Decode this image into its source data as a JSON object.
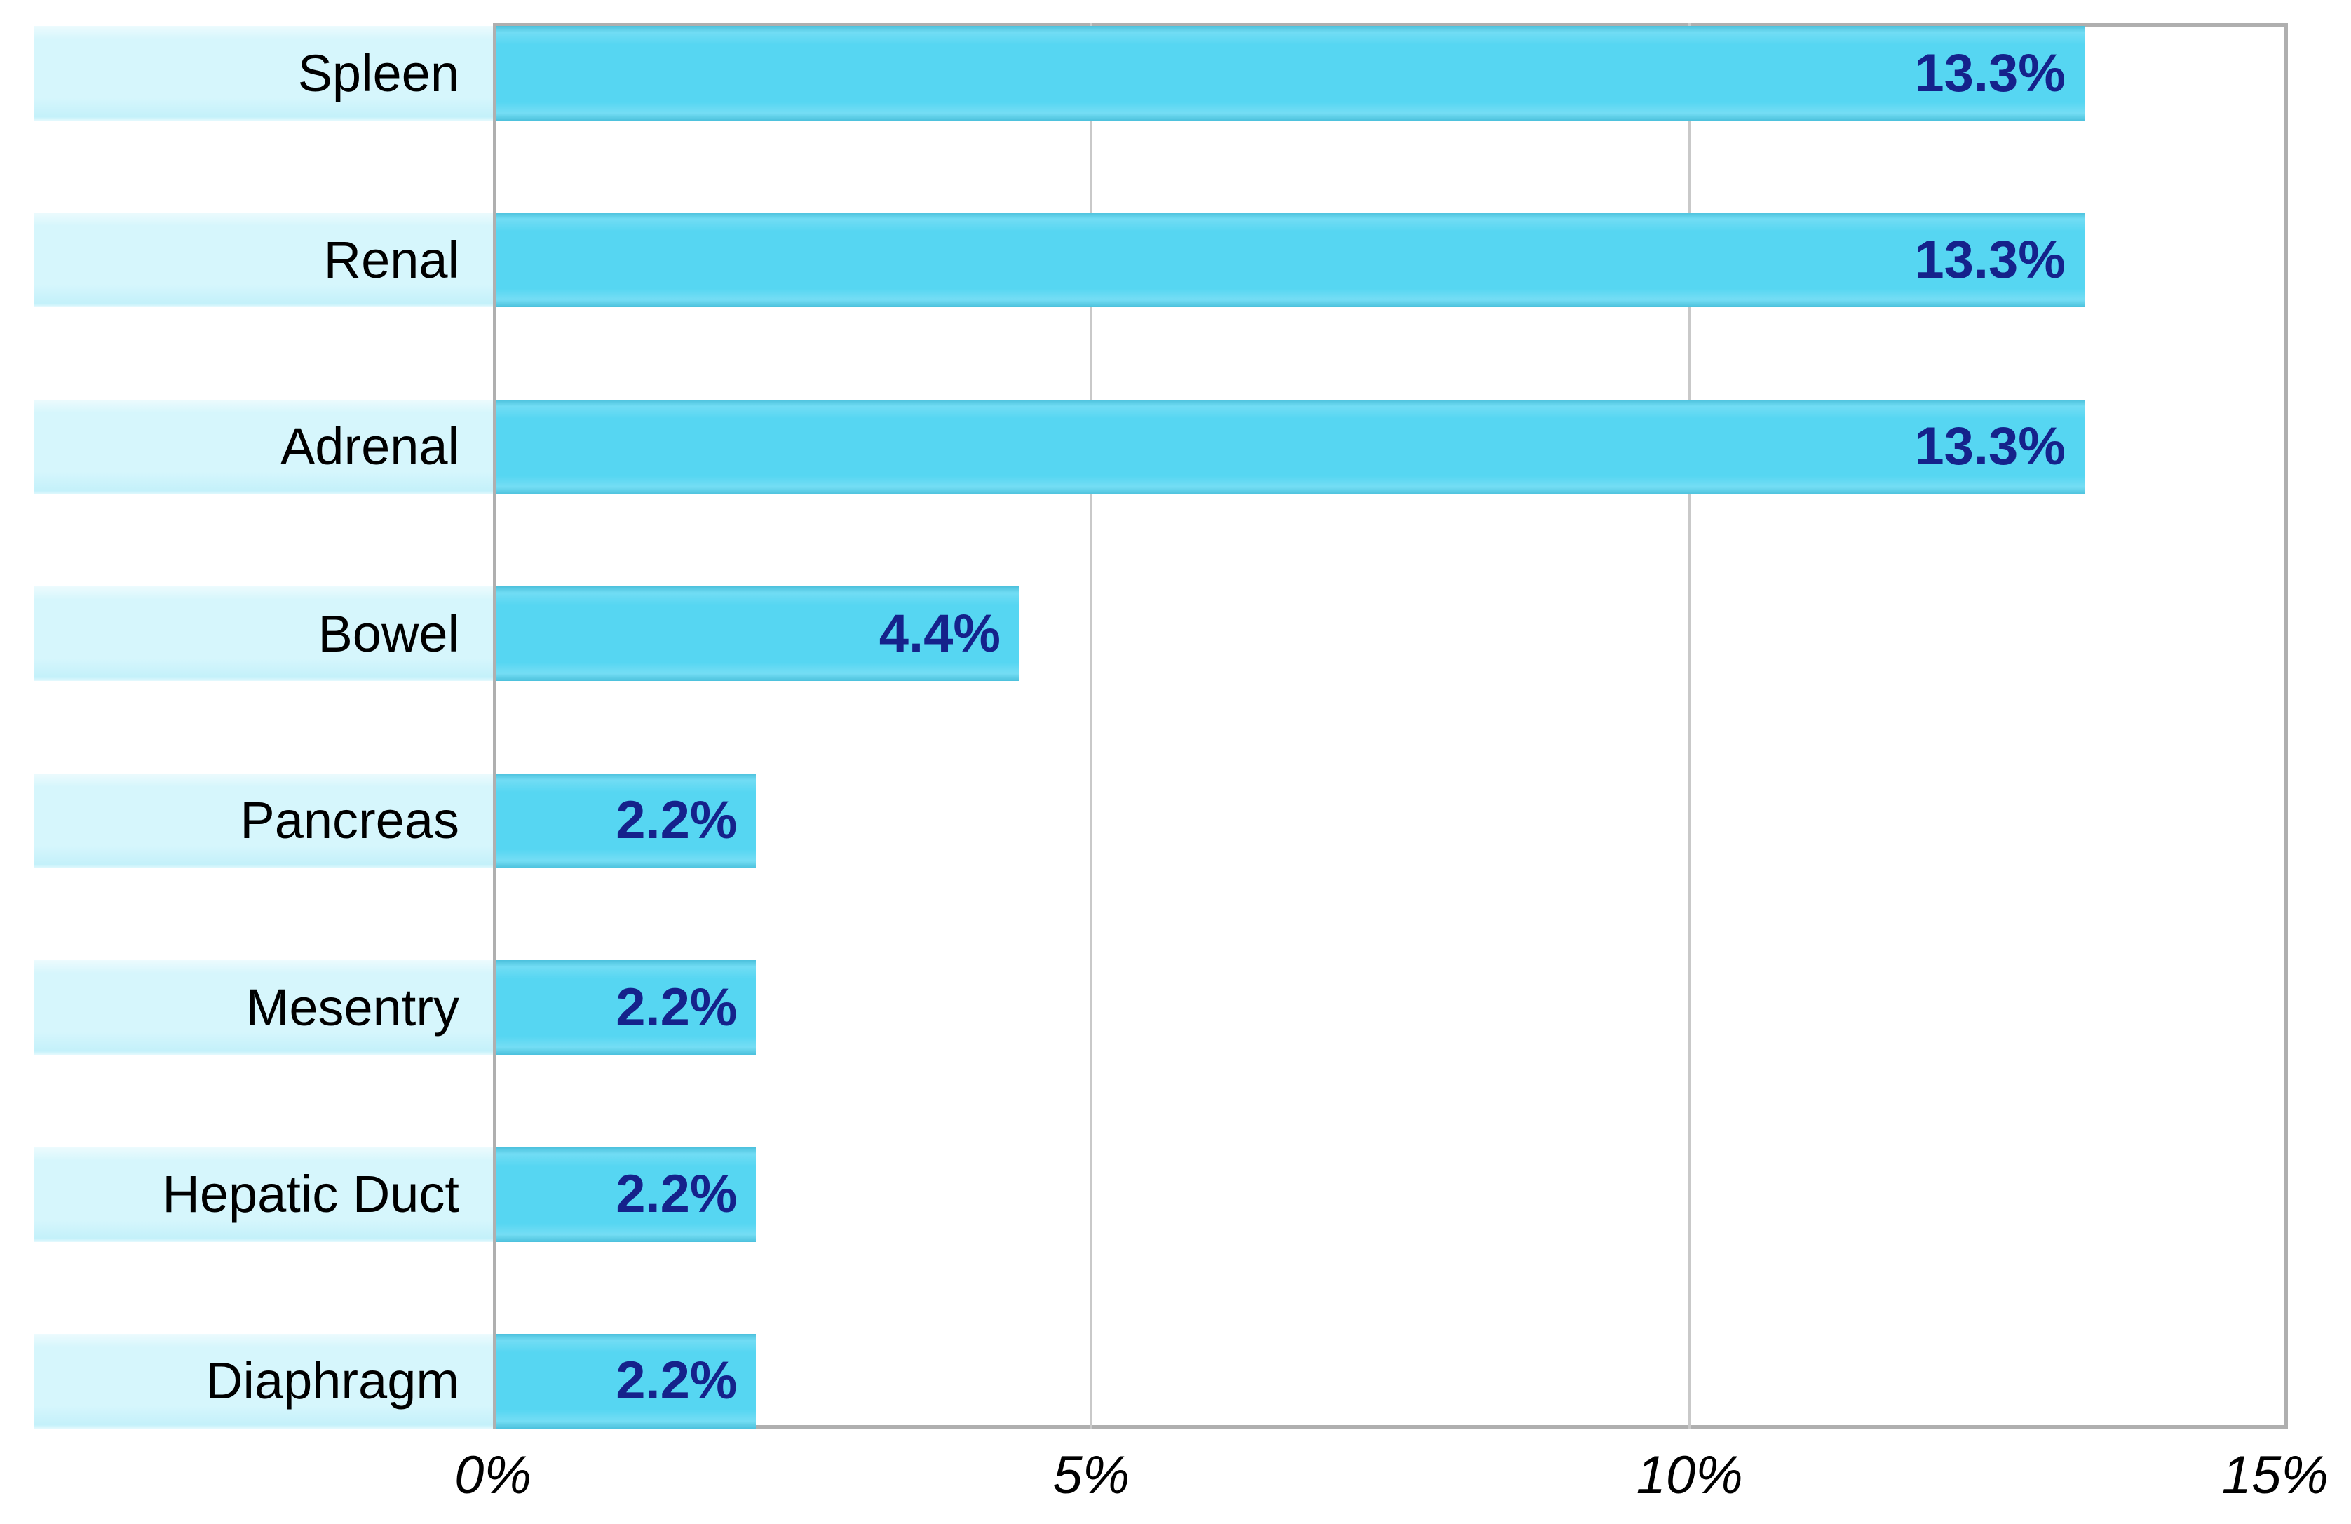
{
  "chart_data": {
    "type": "bar",
    "orientation": "horizontal",
    "title": "",
    "xlabel": "",
    "ylabel": "",
    "categories": [
      "Spleen",
      "Renal",
      "Adrenal",
      "Bowel",
      "Pancreas",
      "Mesentry",
      "Hepatic Duct",
      "Diaphragm"
    ],
    "values": [
      13.3,
      13.3,
      13.3,
      4.4,
      2.2,
      2.2,
      2.2,
      2.2
    ],
    "value_labels": [
      "13.3%",
      "13.3%",
      "13.3%",
      "4.4%",
      "2.2%",
      "2.2%",
      "2.2%",
      "2.2%"
    ],
    "x_axis": {
      "min": 0,
      "max": 15,
      "tick_values": [
        0,
        5,
        10,
        15
      ],
      "tick_labels": [
        "0%",
        "5%",
        "10%",
        "15%"
      ],
      "gridline_values": [
        5,
        10
      ]
    },
    "legend": "none",
    "grid": "vertical-gridlines",
    "colors": {
      "background": "#ffffff",
      "bar_fill": "#56d6f2",
      "category_band_fill": "#d6f6fc",
      "value_label_color": "#15228b",
      "category_label_color": "#000000",
      "tick_label_color": "#000000",
      "gridline_color": "#c9c9c9",
      "axis_frame_color": "#afafaf"
    }
  }
}
